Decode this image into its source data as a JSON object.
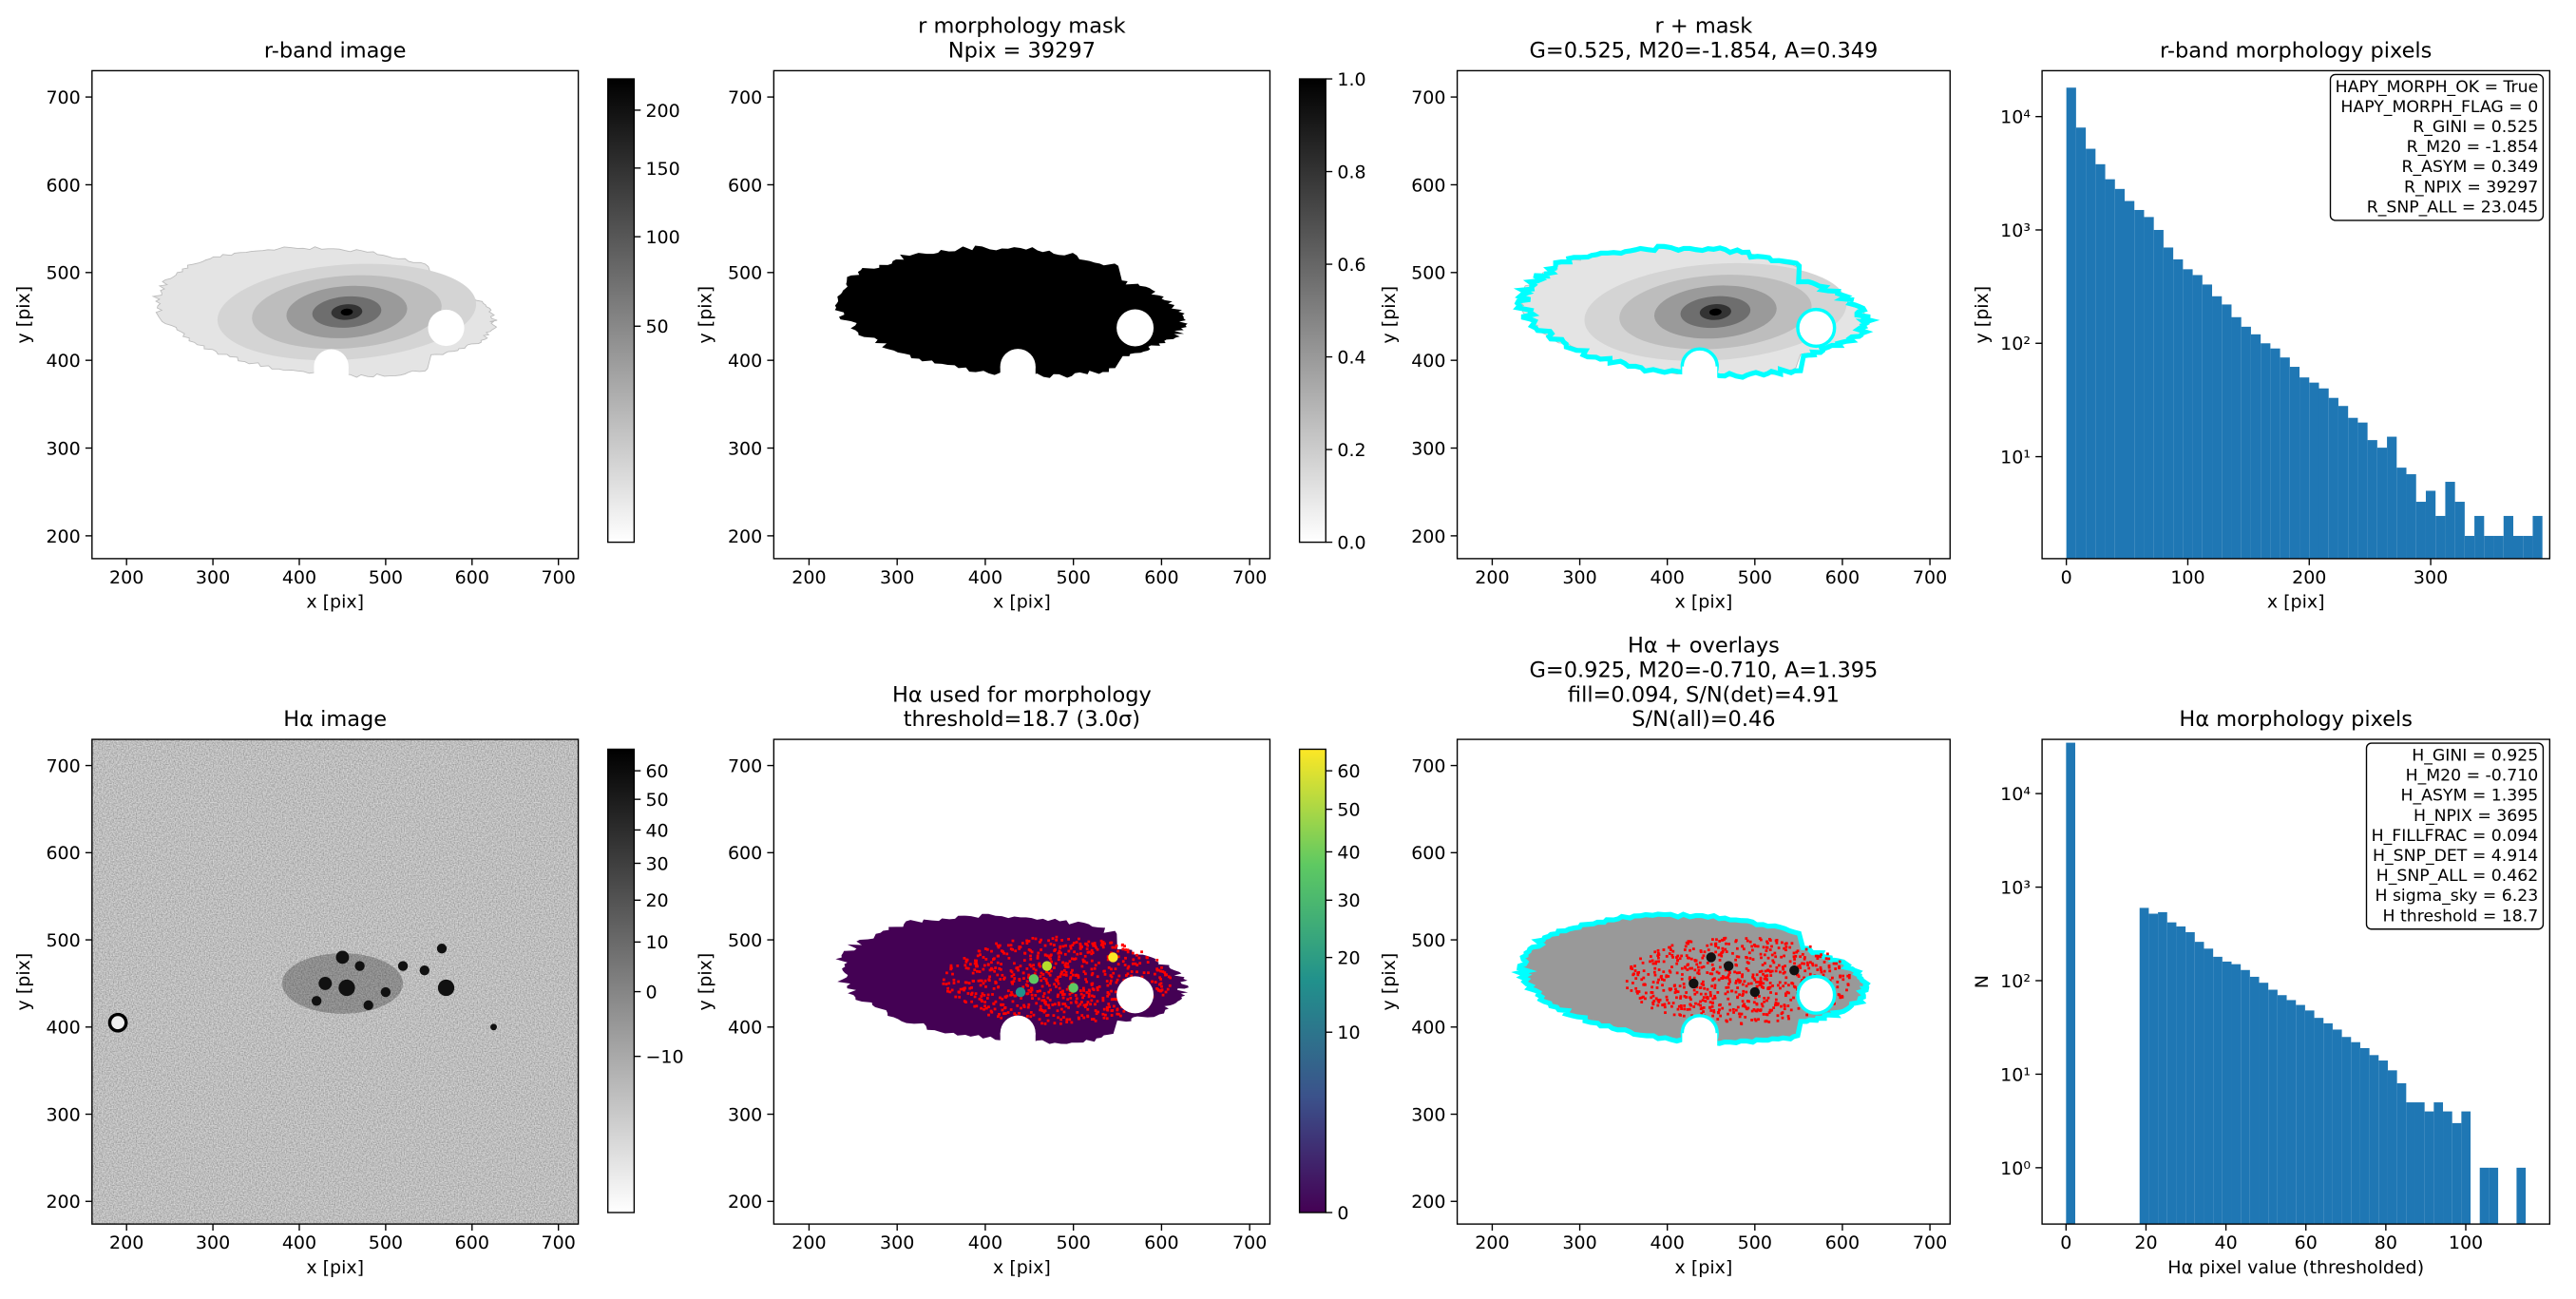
{
  "chart_data": [
    {
      "type": "image",
      "title": [
        "r-band image"
      ],
      "xlabel": "x [pix]",
      "ylabel": "y [pix]",
      "xlim": [
        160,
        723
      ],
      "ylim": [
        174,
        730
      ],
      "xticks": [
        200,
        300,
        400,
        500,
        600,
        700
      ],
      "yticks": [
        200,
        300,
        400,
        500,
        600,
        700
      ],
      "colormap": "gray_r",
      "colorbar": {
        "lim": [
          0,
          230
        ],
        "scale": "sqrt",
        "ticks": [
          50,
          100,
          150,
          200
        ]
      }
    },
    {
      "type": "image",
      "title": [
        "r morphology mask",
        "Npix = 39297"
      ],
      "xlabel": "x [pix]",
      "ylabel": "y [pix]",
      "xlim": [
        160,
        723
      ],
      "ylim": [
        174,
        730
      ],
      "xticks": [
        200,
        300,
        400,
        500,
        600,
        700
      ],
      "yticks": [
        200,
        300,
        400,
        500,
        600,
        700
      ],
      "colormap": "gray_r",
      "colorbar": {
        "lim": [
          0,
          1
        ],
        "scale": "linear",
        "ticks": [
          {
            "value": 0,
            "label": "0.0"
          },
          0.2,
          0.4,
          0.6,
          0.8,
          {
            "value": 1,
            "label": "1.0"
          }
        ]
      }
    },
    {
      "type": "image",
      "title": [
        "r + mask",
        "G=0.525, M20=-1.854, A=0.349"
      ],
      "xlabel": "x [pix]",
      "ylabel": "y [pix]",
      "xlim": [
        160,
        723
      ],
      "ylim": [
        174,
        730
      ],
      "xticks": [
        200,
        300,
        400,
        500,
        600,
        700
      ],
      "yticks": [
        200,
        300,
        400,
        500,
        600,
        700
      ],
      "colormap": "gray_r",
      "contour_color": "cyan"
    },
    {
      "type": "histogram",
      "title": [
        "r-band morphology pixels"
      ],
      "xlabel": "x [pix]",
      "ylabel": "y [pix]",
      "xlim": [
        -20,
        398
      ],
      "ylim": [
        1.26,
        25400
      ],
      "log_y": true,
      "color": "#1f77b4",
      "xticks": [
        0,
        100,
        200,
        300
      ],
      "yticks": [
        {
          "value": 10,
          "label": "10¹"
        },
        {
          "value": 100,
          "label": "10²"
        },
        {
          "value": 1000,
          "label": "10³"
        },
        {
          "value": 10000,
          "label": "10⁴"
        }
      ],
      "bins": [
        0,
        8,
        16,
        24,
        32,
        40,
        48,
        56,
        64,
        72,
        80,
        88,
        96,
        104,
        112,
        120,
        128,
        136,
        144,
        152,
        160,
        168,
        176,
        184,
        192,
        200,
        208,
        216,
        224,
        232,
        240,
        248,
        256,
        264,
        272,
        280,
        288,
        296,
        304,
        312,
        320,
        328,
        336,
        344,
        352,
        360,
        368,
        376,
        384,
        392
      ],
      "counts": [
        18000,
        8000,
        5200,
        3800,
        2800,
        2300,
        1800,
        1500,
        1300,
        1000,
        700,
        550,
        450,
        400,
        330,
        260,
        220,
        170,
        140,
        120,
        100,
        90,
        75,
        62,
        50,
        45,
        40,
        33,
        28,
        22,
        20,
        14,
        12,
        15,
        8,
        7,
        4,
        5,
        3,
        6,
        4,
        2,
        3,
        2,
        2,
        3,
        2,
        2,
        3
      ],
      "annotation": [
        "HAPY_MORPH_OK = True",
        "HAPY_MORPH_FLAG = 0",
        "R_GINI = 0.525",
        "R_M20 = -1.854",
        "R_ASYM = 0.349",
        "R_NPIX = 39297",
        "R_SNP_ALL = 23.045"
      ]
    },
    {
      "type": "image",
      "title": [
        "Hα image"
      ],
      "xlabel": "x [pix]",
      "ylabel": "y [pix]",
      "xlim": [
        160,
        723
      ],
      "ylim": [
        174,
        730
      ],
      "xticks": [
        200,
        300,
        400,
        500,
        600,
        700
      ],
      "yticks": [
        200,
        300,
        400,
        500,
        600,
        700
      ],
      "colormap": "gray_r",
      "colorbar": {
        "lim": [
          -20,
          68
        ],
        "scale": "sqrt",
        "ticks": [
          {
            "value": -10,
            "label": "−10"
          },
          0,
          10,
          20,
          30,
          40,
          50,
          60
        ]
      }
    },
    {
      "type": "image",
      "title": [
        "Hα used for morphology",
        "threshold=18.7 (3.0σ)"
      ],
      "xlabel": "x [pix]",
      "ylabel": "y [pix]",
      "xlim": [
        160,
        723
      ],
      "ylim": [
        174,
        730
      ],
      "xticks": [
        200,
        300,
        400,
        500,
        600,
        700
      ],
      "yticks": [
        200,
        300,
        400,
        500,
        600,
        700
      ],
      "colormap": "viridis",
      "overlay_color": "red",
      "colorbar": {
        "lim": [
          0,
          66
        ],
        "scale": "sqrt",
        "ticks": [
          0,
          10,
          20,
          30,
          40,
          50,
          60
        ]
      }
    },
    {
      "type": "image",
      "title": [
        "Hα + overlays",
        "G=0.925, M20=-0.710, A=1.395",
        "fill=0.094, S/N(det)=4.91",
        "S/N(all)=0.46"
      ],
      "xlabel": "x [pix]",
      "ylabel": "y [pix]",
      "xlim": [
        160,
        723
      ],
      "ylim": [
        174,
        730
      ],
      "xticks": [
        200,
        300,
        400,
        500,
        600,
        700
      ],
      "yticks": [
        200,
        300,
        400,
        500,
        600,
        700
      ],
      "colormap": "gray_r",
      "contour_color": "cyan",
      "overlay_color": "red"
    },
    {
      "type": "histogram",
      "title": [
        "Hα morphology pixels"
      ],
      "xlabel": "Hα pixel value (thresholded)",
      "ylabel": "N",
      "xlim": [
        -6,
        121
      ],
      "ylim": [
        0.25,
        38000
      ],
      "log_y": true,
      "color": "#1f77b4",
      "xticks": [
        0,
        20,
        40,
        60,
        80,
        100
      ],
      "yticks": [
        {
          "value": 1,
          "label": "10⁰"
        },
        {
          "value": 10,
          "label": "10¹"
        },
        {
          "value": 100,
          "label": "10²"
        },
        {
          "value": 1000,
          "label": "10³"
        },
        {
          "value": 10000,
          "label": "10⁴"
        }
      ],
      "bins": [
        0,
        2.3,
        4.6,
        6.9,
        9.2,
        11.5,
        13.8,
        16.1,
        18.4,
        20.7,
        23,
        25.3,
        27.6,
        29.9,
        32.2,
        34.5,
        36.8,
        39.1,
        41.4,
        43.7,
        46,
        48.3,
        50.6,
        52.9,
        55.2,
        57.5,
        59.8,
        62.1,
        64.4,
        66.7,
        69,
        71.3,
        73.6,
        75.9,
        78.2,
        80.5,
        82.8,
        85.1,
        87.4,
        89.7,
        92,
        94.3,
        96.6,
        98.9,
        101.2,
        103.5,
        105.8,
        108.1,
        110.4,
        112.7,
        115
      ],
      "counts": [
        35000,
        0,
        0,
        0,
        0,
        0,
        0,
        0,
        600,
        520,
        540,
        420,
        380,
        330,
        260,
        220,
        180,
        160,
        150,
        130,
        110,
        95,
        80,
        70,
        62,
        55,
        48,
        40,
        35,
        30,
        25,
        22,
        19,
        16,
        14,
        11,
        8,
        5,
        5,
        4,
        5,
        4,
        3,
        4,
        0,
        1,
        1,
        0,
        0,
        1
      ],
      "annotation": [
        "H_GINI = 0.925",
        "H_M20 = -0.710",
        "H_ASYM = 1.395",
        "H_NPIX = 3695",
        "H_FILLFRAC = 0.094",
        "H_SNP_DET = 4.914",
        "H_SNP_ALL = 0.462",
        "H sigma_sky = 6.23",
        "H threshold = 18.7"
      ]
    }
  ]
}
